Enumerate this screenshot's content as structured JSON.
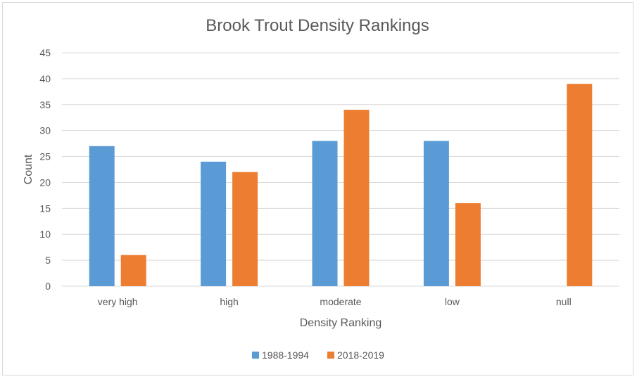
{
  "chart_data": {
    "type": "bar",
    "title": "Brook Trout Density Rankings",
    "xlabel": "Density Ranking",
    "ylabel": "Count",
    "categories": [
      "very high",
      "high",
      "moderate",
      "low",
      "null"
    ],
    "series": [
      {
        "name": "1988-1994",
        "values": [
          27,
          24,
          28,
          28,
          0
        ],
        "color": "#5b9bd5"
      },
      {
        "name": "2018-2019",
        "values": [
          6,
          22,
          34,
          16,
          39
        ],
        "color": "#ed7d31"
      }
    ],
    "ylim": [
      0,
      45
    ],
    "yticks": [
      0,
      5,
      10,
      15,
      20,
      25,
      30,
      35,
      40,
      45
    ],
    "grid": true,
    "legend": "bottom"
  }
}
